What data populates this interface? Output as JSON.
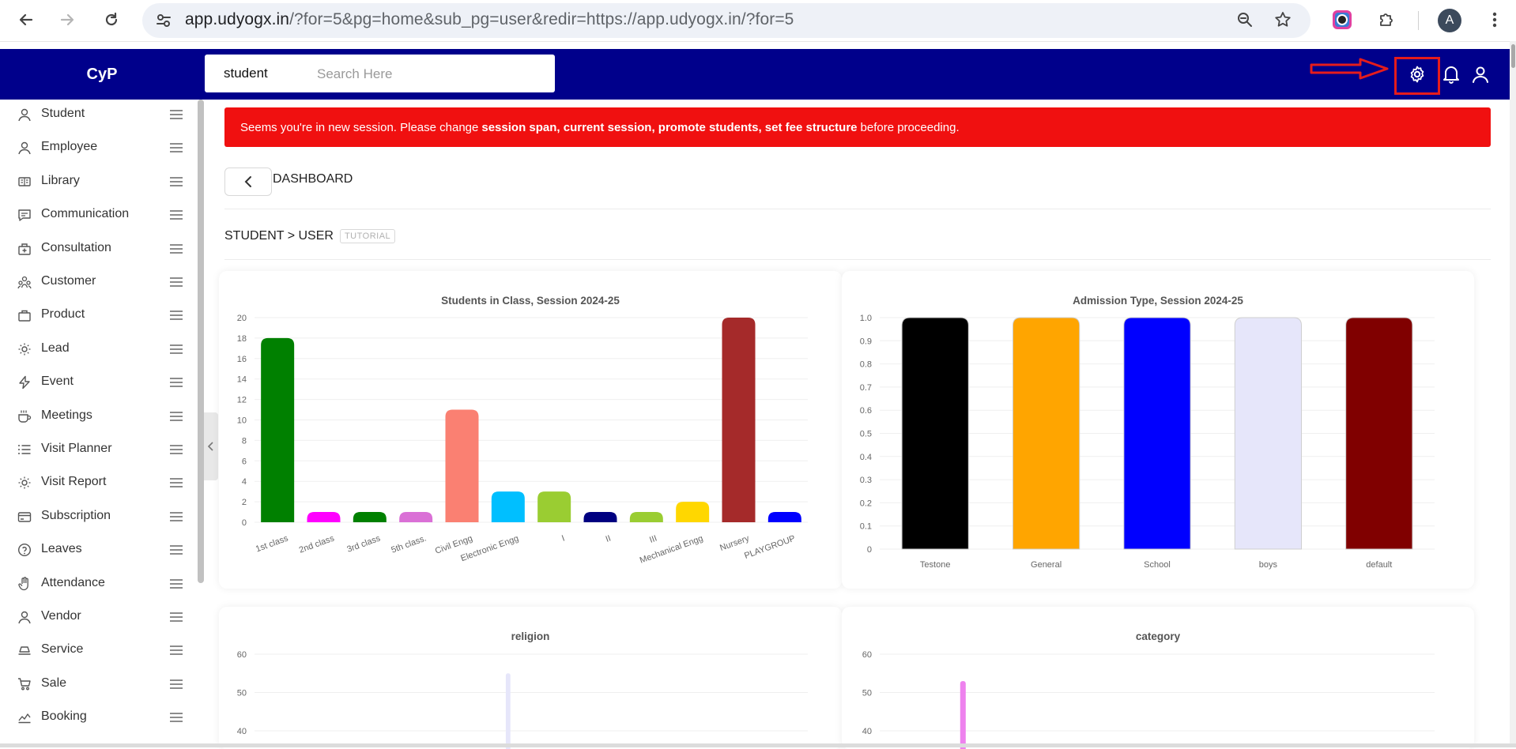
{
  "browser": {
    "url_host": "app.udyogx.in",
    "url_rest": "/?for=5&pg=home&sub_pg=user&redir=https://app.udyogx.in/?for=5",
    "profile_initial": "A"
  },
  "header": {
    "brand": "CyP",
    "search_scope": "student",
    "search_placeholder": "Search Here",
    "icons": [
      "settings-icon",
      "bell-icon",
      "user-icon"
    ]
  },
  "sidebar": {
    "items": [
      {
        "label": "Student",
        "icon": "user-icon"
      },
      {
        "label": "Employee",
        "icon": "user-icon"
      },
      {
        "label": "Library",
        "icon": "book-icon"
      },
      {
        "label": "Communication",
        "icon": "chat-icon"
      },
      {
        "label": "Consultation",
        "icon": "briefcase-medical-icon"
      },
      {
        "label": "Customer",
        "icon": "users-icon"
      },
      {
        "label": "Product",
        "icon": "bag-icon"
      },
      {
        "label": "Lead",
        "icon": "sun-icon"
      },
      {
        "label": "Event",
        "icon": "bolt-icon"
      },
      {
        "label": "Meetings",
        "icon": "coffee-icon"
      },
      {
        "label": "Visit Planner",
        "icon": "list-icon"
      },
      {
        "label": "Visit Report",
        "icon": "sun-icon"
      },
      {
        "label": "Subscription",
        "icon": "card-icon"
      },
      {
        "label": "Leaves",
        "icon": "help-circle-icon"
      },
      {
        "label": "Attendance",
        "icon": "hand-icon"
      },
      {
        "label": "Vendor",
        "icon": "user-icon"
      },
      {
        "label": "Service",
        "icon": "layers-icon"
      },
      {
        "label": "Sale",
        "icon": "cart-icon"
      },
      {
        "label": "Booking",
        "icon": "chart-line-icon"
      }
    ]
  },
  "alert": {
    "prefix": "Seems you're in new session. Please change",
    "bold": "session span, current session, promote students, set fee structure",
    "suffix": "before proceeding."
  },
  "page": {
    "title": "DASHBOARD",
    "breadcrumb": "STUDENT > USER",
    "tutorial_badge": "TUTORIAL"
  },
  "colors": {
    "header_bg": "#00008b",
    "alert_bg": "#f01010"
  },
  "chart_data": [
    {
      "type": "bar",
      "title": "Students in Class, Session 2024-25",
      "categories": [
        "1st class",
        "2nd class",
        "3rd class",
        "5th class.",
        "Civil Engg",
        "Electronic Engg",
        "I",
        "II",
        "III",
        "Mechanical Engg",
        "Nursery",
        "PLAYGROUP"
      ],
      "values": [
        18,
        1,
        1,
        1,
        11,
        3,
        3,
        1,
        1,
        2,
        20,
        1
      ],
      "colors": [
        "#008000",
        "#ff00ff",
        "#008000",
        "#da70d6",
        "#fa8072",
        "#00bfff",
        "#9acd32",
        "#000080",
        "#9acd32",
        "#ffd700",
        "#a52a2a",
        "#0000ff"
      ],
      "yticks": [
        0,
        2,
        4,
        6,
        8,
        10,
        12,
        14,
        16,
        18,
        20
      ],
      "ylim": [
        0,
        20
      ]
    },
    {
      "type": "bar",
      "title": "Admission Type, Session 2024-25",
      "categories": [
        "Testone",
        "General",
        "School",
        "boys",
        "default"
      ],
      "values": [
        1,
        1,
        1,
        1,
        1
      ],
      "colors": [
        "#000000",
        "#ffa500",
        "#0000ff",
        "#e6e6fa",
        "#800000"
      ],
      "yticks": [
        "0",
        "0.1",
        "0.2",
        "0.3",
        "0.4",
        "0.5",
        "0.6",
        "0.7",
        "0.8",
        "0.9",
        "1.0"
      ],
      "ylim": [
        0,
        1
      ]
    },
    {
      "type": "bar",
      "title": "religion",
      "yticks": [
        40,
        50,
        60
      ],
      "ylim": [
        0,
        60
      ],
      "values": [
        55
      ],
      "colors": [
        "#e6e6fa"
      ]
    },
    {
      "type": "bar",
      "title": "category",
      "yticks": [
        40,
        50,
        60
      ],
      "ylim": [
        0,
        60
      ],
      "values": [
        53
      ],
      "colors": [
        "#ee82ee"
      ]
    }
  ]
}
